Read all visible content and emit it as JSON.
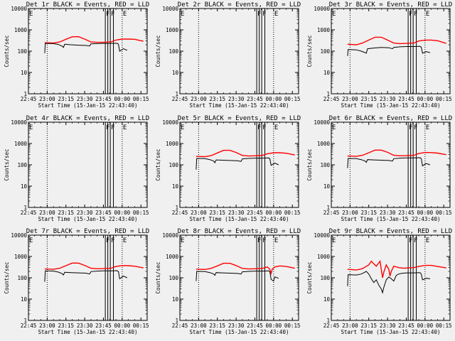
{
  "chart_data": {
    "type": "line",
    "layout": "3x3 grid",
    "xlabel": "Start Time (15-Jan-15 22:43:40)",
    "ylabel": "Counts/sec",
    "yscale": "log",
    "ylim": [
      1,
      10000
    ],
    "ytick_labels": [
      "1",
      "10",
      "100",
      "1000",
      "10000"
    ],
    "xlim_minutes": [
      0,
      95
    ],
    "xtick_labels": [
      "22:45",
      "23:00",
      "23:15",
      "23:30",
      "23:45",
      "00:00",
      "00:15"
    ],
    "xtick_minutes": [
      0,
      15,
      30,
      45,
      60,
      75,
      90
    ],
    "series_colors": {
      "events": "#000000",
      "lld": "#ff0000"
    },
    "dotted_lines_minutes": [
      15,
      75
    ],
    "solid_lines_minutes": [
      61.5,
      63.5,
      65.5,
      68
    ],
    "markers": [
      {
        "label": "F",
        "minute": 61.5
      },
      {
        "label": "F",
        "minute": 65.5
      },
      {
        "label": "E",
        "minute": 75
      }
    ],
    "panels": [
      {
        "title": "Det 1r BLACK = Events, RED = LLD",
        "has_data": true,
        "events": [
          [
            13,
            80
          ],
          [
            13.5,
            230
          ],
          [
            20,
            225
          ],
          [
            24,
            205
          ],
          [
            27,
            170
          ],
          [
            28,
            150
          ],
          [
            29,
            210
          ],
          [
            34,
            200
          ],
          [
            40,
            190
          ],
          [
            46,
            185
          ],
          [
            49,
            175
          ],
          [
            50,
            220
          ],
          [
            55,
            225
          ],
          [
            60,
            230
          ],
          [
            66,
            230
          ],
          [
            71,
            235
          ],
          [
            72,
            210
          ],
          [
            73,
            100
          ],
          [
            76,
            130
          ],
          [
            79,
            110
          ]
        ],
        "lld": [
          [
            13,
            250
          ],
          [
            20,
            240
          ],
          [
            25,
            270
          ],
          [
            30,
            360
          ],
          [
            35,
            470
          ],
          [
            40,
            480
          ],
          [
            45,
            370
          ],
          [
            50,
            270
          ],
          [
            55,
            260
          ],
          [
            60,
            260
          ],
          [
            66,
            270
          ],
          [
            70,
            330
          ],
          [
            75,
            370
          ],
          [
            80,
            370
          ],
          [
            85,
            360
          ],
          [
            92,
            290
          ]
        ]
      },
      {
        "title": "Det 2r BLACK = Events, RED = LLD",
        "has_data": false,
        "events": [],
        "lld": []
      },
      {
        "title": "Det 3r BLACK = Events, RED = LLD",
        "has_data": true,
        "events": [
          [
            13,
            60
          ],
          [
            13.5,
            120
          ],
          [
            20,
            115
          ],
          [
            24,
            100
          ],
          [
            27,
            85
          ],
          [
            28,
            80
          ],
          [
            29,
            130
          ],
          [
            34,
            140
          ],
          [
            40,
            150
          ],
          [
            46,
            145
          ],
          [
            49,
            130
          ],
          [
            50,
            150
          ],
          [
            55,
            160
          ],
          [
            60,
            165
          ],
          [
            66,
            165
          ],
          [
            71,
            170
          ],
          [
            72,
            150
          ],
          [
            73,
            80
          ],
          [
            76,
            95
          ],
          [
            79,
            85
          ]
        ],
        "lld": [
          [
            13,
            210
          ],
          [
            20,
            200
          ],
          [
            25,
            240
          ],
          [
            30,
            330
          ],
          [
            35,
            450
          ],
          [
            40,
            450
          ],
          [
            45,
            330
          ],
          [
            50,
            240
          ],
          [
            55,
            225
          ],
          [
            60,
            230
          ],
          [
            66,
            240
          ],
          [
            70,
            300
          ],
          [
            75,
            330
          ],
          [
            80,
            330
          ],
          [
            85,
            310
          ],
          [
            92,
            230
          ]
        ]
      },
      {
        "title": "Det 4r BLACK = Events, RED = LLD",
        "has_data": false,
        "events": [],
        "lld": []
      },
      {
        "title": "Det 5r BLACK = Events, RED = LLD",
        "has_data": true,
        "events": [
          [
            13,
            60
          ],
          [
            13.5,
            200
          ],
          [
            20,
            195
          ],
          [
            24,
            175
          ],
          [
            27,
            150
          ],
          [
            28,
            125
          ],
          [
            29,
            170
          ],
          [
            34,
            165
          ],
          [
            40,
            160
          ],
          [
            46,
            155
          ],
          [
            49,
            145
          ],
          [
            50,
            190
          ],
          [
            55,
            200
          ],
          [
            60,
            205
          ],
          [
            66,
            205
          ],
          [
            71,
            210
          ],
          [
            72,
            190
          ],
          [
            73,
            95
          ],
          [
            76,
            120
          ],
          [
            79,
            100
          ]
        ],
        "lld": [
          [
            13,
            250
          ],
          [
            20,
            240
          ],
          [
            25,
            270
          ],
          [
            30,
            360
          ],
          [
            35,
            480
          ],
          [
            40,
            480
          ],
          [
            45,
            380
          ],
          [
            50,
            275
          ],
          [
            55,
            260
          ],
          [
            60,
            265
          ],
          [
            66,
            275
          ],
          [
            70,
            330
          ],
          [
            75,
            370
          ],
          [
            80,
            370
          ],
          [
            85,
            350
          ],
          [
            92,
            290
          ]
        ]
      },
      {
        "title": "Det 6r BLACK = Events, RED = LLD",
        "has_data": true,
        "events": [
          [
            13,
            70
          ],
          [
            13.5,
            200
          ],
          [
            20,
            195
          ],
          [
            24,
            175
          ],
          [
            27,
            150
          ],
          [
            28,
            130
          ],
          [
            29,
            175
          ],
          [
            34,
            170
          ],
          [
            40,
            165
          ],
          [
            46,
            160
          ],
          [
            49,
            150
          ],
          [
            50,
            195
          ],
          [
            55,
            205
          ],
          [
            60,
            210
          ],
          [
            66,
            210
          ],
          [
            71,
            215
          ],
          [
            72,
            195
          ],
          [
            73,
            90
          ],
          [
            76,
            115
          ],
          [
            79,
            100
          ]
        ],
        "lld": [
          [
            13,
            260
          ],
          [
            20,
            250
          ],
          [
            25,
            280
          ],
          [
            30,
            370
          ],
          [
            35,
            490
          ],
          [
            40,
            490
          ],
          [
            45,
            385
          ],
          [
            50,
            280
          ],
          [
            55,
            265
          ],
          [
            60,
            270
          ],
          [
            66,
            280
          ],
          [
            70,
            340
          ],
          [
            75,
            380
          ],
          [
            80,
            375
          ],
          [
            85,
            355
          ],
          [
            92,
            300
          ]
        ]
      },
      {
        "title": "Det 7r BLACK = Events, RED = LLD",
        "has_data": true,
        "events": [
          [
            13,
            65
          ],
          [
            13.5,
            210
          ],
          [
            20,
            205
          ],
          [
            24,
            185
          ],
          [
            27,
            155
          ],
          [
            28,
            135
          ],
          [
            29,
            180
          ],
          [
            34,
            175
          ],
          [
            40,
            170
          ],
          [
            46,
            165
          ],
          [
            49,
            150
          ],
          [
            50,
            195
          ],
          [
            55,
            205
          ],
          [
            60,
            210
          ],
          [
            66,
            210
          ],
          [
            71,
            215
          ],
          [
            72,
            195
          ],
          [
            73,
            90
          ],
          [
            76,
            120
          ],
          [
            79,
            100
          ]
        ],
        "lld": [
          [
            13,
            260
          ],
          [
            20,
            250
          ],
          [
            25,
            280
          ],
          [
            30,
            370
          ],
          [
            35,
            490
          ],
          [
            40,
            490
          ],
          [
            45,
            380
          ],
          [
            50,
            280
          ],
          [
            55,
            265
          ],
          [
            60,
            270
          ],
          [
            66,
            280
          ],
          [
            70,
            340
          ],
          [
            75,
            375
          ],
          [
            80,
            370
          ],
          [
            85,
            350
          ],
          [
            92,
            290
          ]
        ]
      },
      {
        "title": "Det 8r BLACK = Events, RED = LLD",
        "has_data": true,
        "events": [
          [
            13,
            70
          ],
          [
            13.5,
            200
          ],
          [
            20,
            195
          ],
          [
            24,
            175
          ],
          [
            27,
            150
          ],
          [
            28,
            130
          ],
          [
            29,
            175
          ],
          [
            34,
            170
          ],
          [
            40,
            165
          ],
          [
            46,
            160
          ],
          [
            49,
            150
          ],
          [
            50,
            190
          ],
          [
            55,
            200
          ],
          [
            60,
            205
          ],
          [
            66,
            205
          ],
          [
            71,
            210
          ],
          [
            72,
            190
          ],
          [
            73,
            85
          ],
          [
            75,
            70
          ],
          [
            76,
            110
          ],
          [
            79,
            95
          ]
        ],
        "lld": [
          [
            13,
            255
          ],
          [
            20,
            245
          ],
          [
            25,
            275
          ],
          [
            30,
            360
          ],
          [
            35,
            480
          ],
          [
            40,
            480
          ],
          [
            45,
            375
          ],
          [
            50,
            275
          ],
          [
            55,
            260
          ],
          [
            60,
            265
          ],
          [
            66,
            275
          ],
          [
            70,
            320
          ],
          [
            72,
            250
          ],
          [
            73,
            160
          ],
          [
            74,
            260
          ],
          [
            76,
            320
          ],
          [
            80,
            360
          ],
          [
            85,
            340
          ],
          [
            92,
            280
          ]
        ]
      },
      {
        "title": "Det 9r BLACK = Events, RED = LLD",
        "has_data": true,
        "events": [
          [
            13,
            40
          ],
          [
            13.5,
            140
          ],
          [
            20,
            135
          ],
          [
            24,
            150
          ],
          [
            28,
            200
          ],
          [
            30,
            150
          ],
          [
            32,
            90
          ],
          [
            34,
            60
          ],
          [
            36,
            80
          ],
          [
            38,
            45
          ],
          [
            40,
            30
          ],
          [
            41,
            20
          ],
          [
            42,
            35
          ],
          [
            44,
            80
          ],
          [
            46,
            110
          ],
          [
            48,
            90
          ],
          [
            50,
            70
          ],
          [
            52,
            130
          ],
          [
            54,
            150
          ],
          [
            56,
            160
          ],
          [
            60,
            170
          ],
          [
            66,
            170
          ],
          [
            71,
            175
          ],
          [
            72,
            150
          ],
          [
            73,
            80
          ],
          [
            76,
            95
          ],
          [
            79,
            90
          ]
        ],
        "lld": [
          [
            13,
            250
          ],
          [
            20,
            230
          ],
          [
            25,
            270
          ],
          [
            30,
            400
          ],
          [
            32,
            600
          ],
          [
            34,
            450
          ],
          [
            36,
            350
          ],
          [
            38,
            500
          ],
          [
            39,
            600
          ],
          [
            40,
            250
          ],
          [
            41,
            100
          ],
          [
            42,
            180
          ],
          [
            44,
            400
          ],
          [
            46,
            250
          ],
          [
            47,
            120
          ],
          [
            48,
            200
          ],
          [
            50,
            350
          ],
          [
            54,
            300
          ],
          [
            58,
            280
          ],
          [
            62,
            290
          ],
          [
            66,
            300
          ],
          [
            70,
            340
          ],
          [
            75,
            380
          ],
          [
            80,
            380
          ],
          [
            85,
            340
          ],
          [
            92,
            290
          ]
        ]
      }
    ]
  }
}
